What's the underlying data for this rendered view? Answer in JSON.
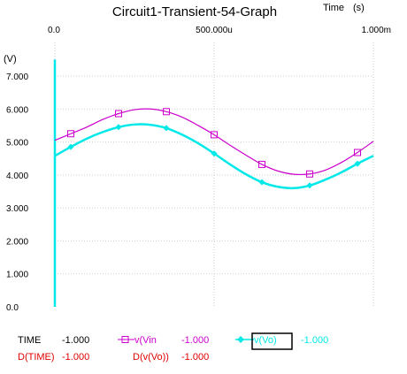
{
  "chart_data": {
    "type": "line",
    "title": "Circuit1-Transient-54-Graph",
    "xlabel": "Time (s)",
    "ylabel": "(V)",
    "x_ticks": [
      {
        "value": 0,
        "label": "0.0"
      },
      {
        "value": 0.0005,
        "label": "500.000u"
      },
      {
        "value": 0.001,
        "label": "1.000m"
      }
    ],
    "y_ticks": [
      {
        "value": 0,
        "label": "0.0"
      },
      {
        "value": 1,
        "label": "1.000"
      },
      {
        "value": 2,
        "label": "2.000"
      },
      {
        "value": 3,
        "label": "3.000"
      },
      {
        "value": 4,
        "label": "4.000"
      },
      {
        "value": 5,
        "label": "5.000"
      },
      {
        "value": 6,
        "label": "6.000"
      },
      {
        "value": 7,
        "label": "7.000"
      }
    ],
    "xlim": [
      0,
      0.001
    ],
    "ylim": [
      0,
      7.5
    ],
    "grid": true,
    "series": [
      {
        "name": "v(Vin)",
        "color": "#cc00cc",
        "marker": "square",
        "x": [
          0,
          5e-05,
          0.0001,
          0.00015,
          0.0002,
          0.00025,
          0.0003,
          0.00035,
          0.0004,
          0.00045,
          0.0005,
          0.00055,
          0.0006,
          0.00065,
          0.0007,
          0.00075,
          0.0008,
          0.00085,
          0.0009,
          0.00095,
          0.001
        ],
        "values": [
          5.05,
          5.25,
          5.45,
          5.68,
          5.86,
          5.98,
          6.0,
          5.92,
          5.75,
          5.5,
          5.22,
          4.9,
          4.6,
          4.32,
          4.12,
          4.02,
          4.03,
          4.15,
          4.38,
          4.68,
          5.02
        ]
      },
      {
        "name": "v(Vo)",
        "color": "#00e8e8",
        "marker": "diamond",
        "x": [
          0,
          5e-05,
          0.0001,
          0.00015,
          0.0002,
          0.00025,
          0.0003,
          0.00035,
          0.0004,
          0.00045,
          0.0005,
          0.00055,
          0.0006,
          0.00065,
          0.0007,
          0.00075,
          0.0008,
          0.00085,
          0.0009,
          0.00095,
          0.001
        ],
        "values": [
          4.58,
          4.85,
          5.1,
          5.3,
          5.45,
          5.53,
          5.52,
          5.42,
          5.22,
          4.96,
          4.65,
          4.32,
          4.02,
          3.78,
          3.64,
          3.6,
          3.68,
          3.86,
          4.08,
          4.34,
          4.58
        ]
      }
    ],
    "spike": {
      "x": 0,
      "y_from": 0,
      "y_to": 7.5,
      "color": "#00e8e8"
    }
  },
  "axis": {
    "time_label": "Time",
    "time_unit": "(s)",
    "y_unit": "(V)"
  },
  "readout": {
    "time_label": "TIME",
    "time_value": "-1.000",
    "dtime_label": "D(TIME)",
    "dtime_value": "-1.000",
    "vin_label": "v(Vin",
    "vin_value": "-1.000",
    "vo_label": "v(Vo)",
    "vo_value": "-1.000",
    "dvo_label": "D(v(Vo))",
    "dvo_value": "-1.000"
  }
}
